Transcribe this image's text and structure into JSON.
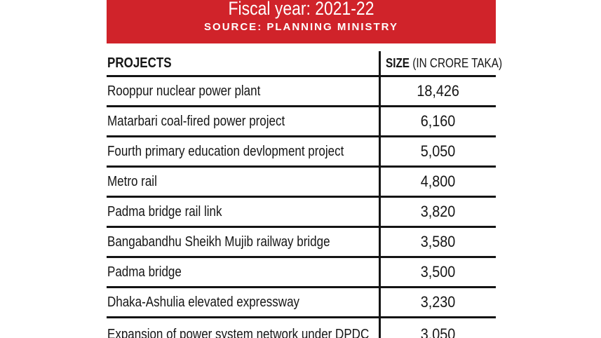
{
  "banner": {
    "title": "Fiscal year: 2021-22",
    "source": "SOURCE: PLANNING MINISTRY",
    "bg_color": "#d0232a",
    "text_color": "#ffffff"
  },
  "table": {
    "header": {
      "projects": "PROJECTS",
      "size": "SIZE",
      "size_unit": "(IN CRORE TAKA)"
    },
    "rows": [
      {
        "project": "Rooppur nuclear power plant",
        "size": "18,426"
      },
      {
        "project": "Matarbari coal-fired power project",
        "size": "6,160"
      },
      {
        "project": "Fourth primary education devlopment project",
        "size": "5,050"
      },
      {
        "project": "Metro rail",
        "size": "4,800"
      },
      {
        "project": "Padma bridge rail link",
        "size": "3,820"
      },
      {
        "project": "Bangabandhu Sheikh Mujib railway bridge",
        "size": "3,580"
      },
      {
        "project": "Padma bridge",
        "size": "3,500"
      },
      {
        "project": "Dhaka-Ashulia elevated expressway",
        "size": "3,230"
      },
      {
        "project": "Expansion of power system network under DPDC",
        "size": "3,050"
      }
    ]
  },
  "chart_data": {
    "type": "table",
    "title": "Fiscal year: 2021-22",
    "subtitle": "SOURCE: PLANNING MINISTRY",
    "columns": [
      "PROJECTS",
      "SIZE (IN CRORE TAKA)"
    ],
    "categories": [
      "Rooppur nuclear power plant",
      "Matarbari coal-fired power project",
      "Fourth primary education devlopment project",
      "Metro rail",
      "Padma bridge rail link",
      "Bangabandhu Sheikh Mujib railway bridge",
      "Padma bridge",
      "Dhaka-Ashulia elevated expressway",
      "Expansion of power system network under DPDC"
    ],
    "values": [
      18426,
      6160,
      5050,
      4800,
      3820,
      3580,
      3500,
      3230,
      3050
    ],
    "units": "crore taka"
  }
}
